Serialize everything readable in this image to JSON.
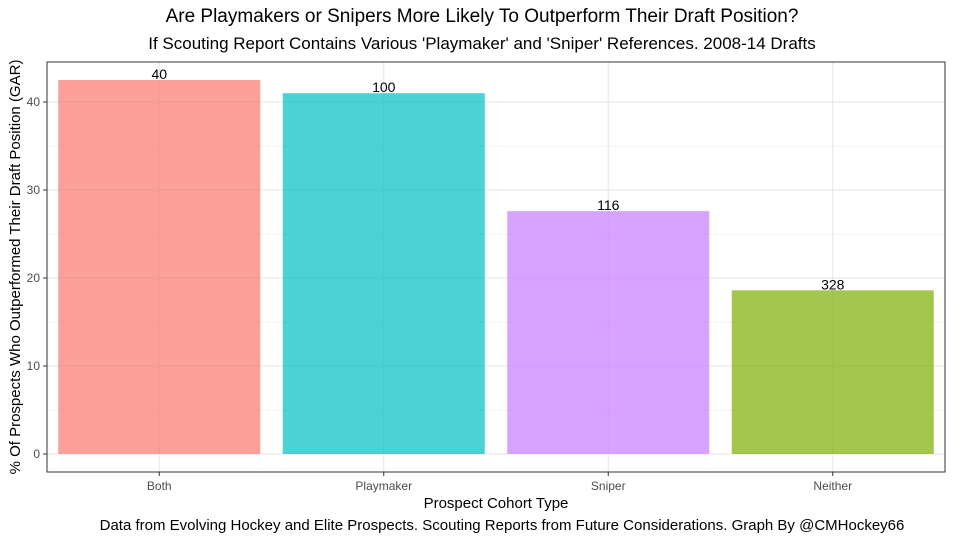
{
  "chart_data": {
    "type": "bar",
    "title": "Are Playmakers or Snipers More Likely To Outperform Their Draft Position?",
    "subtitle": "If Scouting Report Contains Various 'Playmaker' and 'Sniper' References. 2008-14 Drafts",
    "xlabel": "Prospect Cohort Type",
    "ylabel": "% Of Prospects Who Outperformed Their Draft Position (GAR)",
    "caption": "Data from Evolving Hockey and Elite Prospects. Scouting Reports from Future Considerations. Graph By @CMHockey66",
    "categories": [
      "Both",
      "Playmaker",
      "Sniper",
      "Neither"
    ],
    "values": [
      42.5,
      41.0,
      27.6,
      18.6
    ],
    "data_labels": [
      "40",
      "100",
      "116",
      "328"
    ],
    "colors": [
      "#F8766D",
      "#00BFC4",
      "#C77CFF",
      "#7CAE00"
    ],
    "bar_opacity": 0.7,
    "ylim": [
      0,
      45
    ],
    "yticks": [
      0,
      10,
      20,
      30,
      40
    ],
    "grid": true,
    "legend": "none"
  }
}
